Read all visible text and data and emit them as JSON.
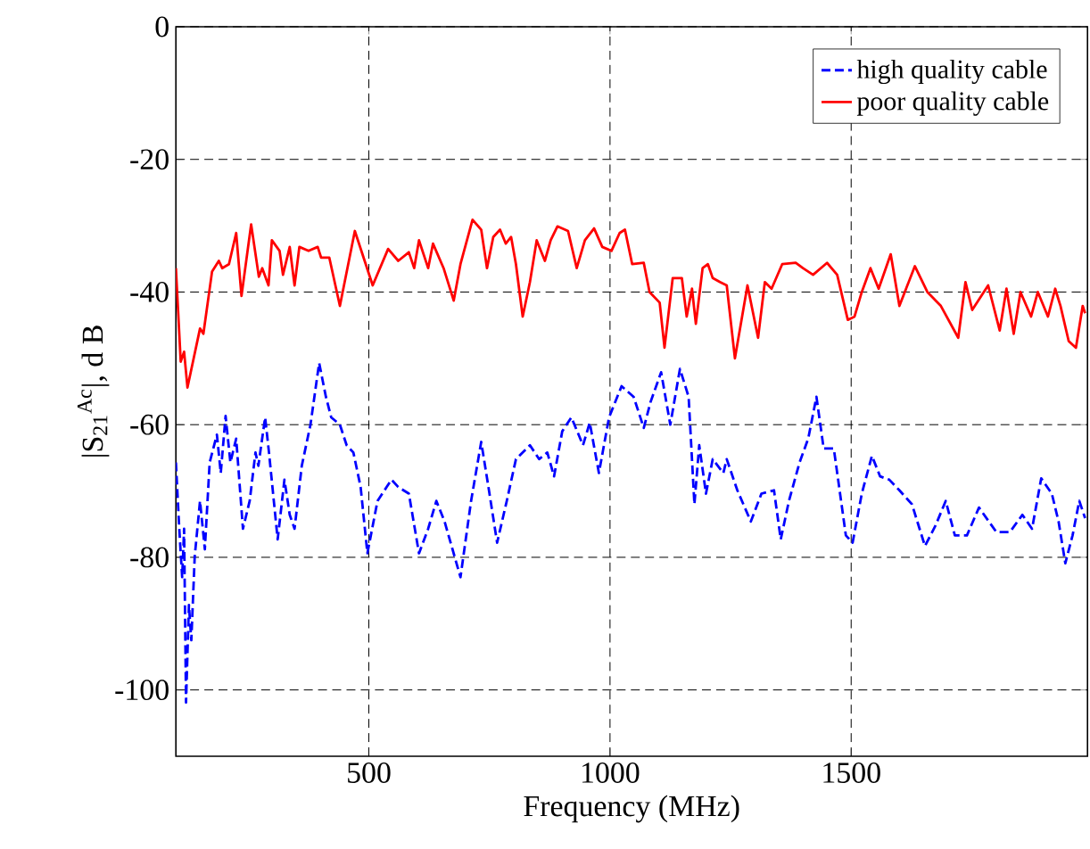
{
  "chart_data": {
    "type": "line",
    "xlabel": "Frequency (MHz)",
    "ylabel": "|S$_{21}$$^{Ac}$|, d B",
    "xlim": [
      100,
      1990
    ],
    "ylim": [
      -110,
      0
    ],
    "xticks": [
      500,
      1000,
      1500
    ],
    "yticks": [
      -100,
      -80,
      -60,
      -40,
      -20,
      0
    ],
    "grid": true,
    "legend": "top right",
    "marker": "none",
    "series": [
      {
        "name": "high quality cable",
        "color": "#0000ff",
        "line_style": "dashed",
        "x": [
          100,
          107,
          113,
          117,
          121,
          127,
          132,
          139,
          150,
          160,
          170,
          185,
          193,
          203,
          213,
          225,
          239,
          253,
          265,
          271,
          285,
          293,
          311,
          325,
          336,
          346,
          361,
          379,
          397,
          411,
          422,
          440,
          454,
          468,
          483,
          497,
          518,
          537,
          547,
          561,
          583,
          604,
          623,
          640,
          657,
          690,
          712,
          733,
          748,
          766,
          786,
          805,
          834,
          853,
          870,
          884,
          901,
          920,
          944,
          958,
          977,
          998,
          1024,
          1049,
          1070,
          1084,
          1106,
          1125,
          1145,
          1163,
          1175,
          1185,
          1199,
          1213,
          1235,
          1242,
          1264,
          1292,
          1314,
          1340,
          1354,
          1371,
          1393,
          1411,
          1428,
          1443,
          1464,
          1489,
          1503,
          1522,
          1543,
          1560,
          1579,
          1600,
          1626,
          1653,
          1675,
          1696,
          1715,
          1740,
          1765,
          1801,
          1829,
          1855,
          1875,
          1894,
          1916,
          1930,
          1944,
          1959,
          1973,
          1985
        ],
        "values": [
          -65.7,
          -75.7,
          -83,
          -75.7,
          -101.9,
          -87.2,
          -92.5,
          -79.9,
          -71.5,
          -78.8,
          -65.7,
          -61.5,
          -67.3,
          -58.7,
          -65.7,
          -62.1,
          -75.7,
          -71.5,
          -64.2,
          -66.2,
          -58.9,
          -64.2,
          -77.3,
          -68.3,
          -73.6,
          -75.7,
          -66.2,
          -60,
          -50.7,
          -55.8,
          -58.9,
          -60,
          -63.1,
          -64.2,
          -69.4,
          -79.4,
          -71.5,
          -69.4,
          -68.3,
          -69.4,
          -70.4,
          -79.4,
          -75.7,
          -71.5,
          -74.6,
          -83,
          -71.5,
          -62.6,
          -69.4,
          -77.8,
          -71.5,
          -65.2,
          -63.1,
          -65.2,
          -64.2,
          -67.8,
          -61,
          -58.9,
          -63.1,
          -59.7,
          -67.3,
          -58.9,
          -54.2,
          -55.8,
          -60.5,
          -56.6,
          -52.1,
          -60,
          -51.6,
          -55.8,
          -72,
          -63.1,
          -70.4,
          -65.2,
          -67.3,
          -65.2,
          -69.9,
          -74.6,
          -70.4,
          -69.9,
          -77.3,
          -71.5,
          -65.7,
          -62.1,
          -55.8,
          -63.6,
          -63.6,
          -76.7,
          -77.8,
          -70.4,
          -64.7,
          -67.8,
          -68.3,
          -69.9,
          -72,
          -78.3,
          -75.2,
          -71.5,
          -76.7,
          -76.7,
          -72.5,
          -76.2,
          -76.2,
          -73.6,
          -75.7,
          -68.1,
          -70.4,
          -74.6,
          -80.9,
          -76.7,
          -71.5,
          -74.1
        ]
      },
      {
        "name": "poor quality cable",
        "color": "#ff0000",
        "line_style": "solid",
        "x": [
          100,
          110,
          117,
          124,
          150,
          157,
          175,
          189,
          196,
          210,
          225,
          236,
          256,
          272,
          279,
          292,
          299,
          315,
          322,
          336,
          346,
          356,
          375,
          394,
          401,
          418,
          440,
          471,
          508,
          540,
          561,
          583,
          594,
          604,
          623,
          633,
          655,
          676,
          690,
          715,
          733,
          745,
          758,
          772,
          784,
          795,
          805,
          819,
          834,
          848,
          865,
          877,
          891,
          913,
          931,
          948,
          967,
          984,
          1003,
          1020,
          1031,
          1046,
          1070,
          1082,
          1103,
          1113,
          1130,
          1149,
          1159,
          1170,
          1178,
          1192,
          1203,
          1213,
          1228,
          1242,
          1259,
          1285,
          1307,
          1321,
          1335,
          1357,
          1385,
          1400,
          1421,
          1450,
          1471,
          1493,
          1507,
          1522,
          1540,
          1557,
          1582,
          1600,
          1632,
          1658,
          1686,
          1722,
          1737,
          1751,
          1784,
          1808,
          1822,
          1837,
          1851,
          1873,
          1887,
          1908,
          1923,
          1934,
          1951,
          1966,
          1980,
          1985
        ],
        "values": [
          -36.4,
          -50.5,
          -49,
          -54.4,
          -45.5,
          -46.3,
          -36.9,
          -35.3,
          -36.4,
          -35.8,
          -31.1,
          -40.6,
          -29.8,
          -37.7,
          -36.4,
          -39,
          -32.2,
          -33.8,
          -37.4,
          -33.2,
          -39,
          -33.2,
          -33.8,
          -33.2,
          -34.8,
          -34.8,
          -42.1,
          -30.8,
          -39,
          -33.5,
          -35.3,
          -34,
          -36.4,
          -32.2,
          -36.4,
          -32.7,
          -36.4,
          -41.3,
          -35.8,
          -29.1,
          -30.6,
          -36.4,
          -31.7,
          -30.6,
          -32.7,
          -31.7,
          -35.8,
          -43.7,
          -38.5,
          -32.2,
          -35.3,
          -32.2,
          -30.1,
          -30.8,
          -36.4,
          -32.2,
          -30.4,
          -33.2,
          -33.8,
          -31.1,
          -30.6,
          -35.8,
          -35.6,
          -40,
          -41.6,
          -48.4,
          -37.9,
          -37.9,
          -43.7,
          -39.5,
          -44.8,
          -36.4,
          -35.8,
          -37.9,
          -38.5,
          -39,
          -50,
          -39,
          -46.9,
          -38.5,
          -39.5,
          -35.8,
          -35.6,
          -36.4,
          -37.4,
          -35.6,
          -37.4,
          -44.2,
          -43.7,
          -40,
          -36.4,
          -39.5,
          -34.3,
          -42.1,
          -36.1,
          -40,
          -42.1,
          -46.9,
          -38.5,
          -42.7,
          -39,
          -45.8,
          -39.5,
          -46.3,
          -40,
          -43.7,
          -40,
          -43.7,
          -39.5,
          -42.1,
          -47.4,
          -48.4,
          -42.1,
          -43.2
        ]
      }
    ]
  }
}
